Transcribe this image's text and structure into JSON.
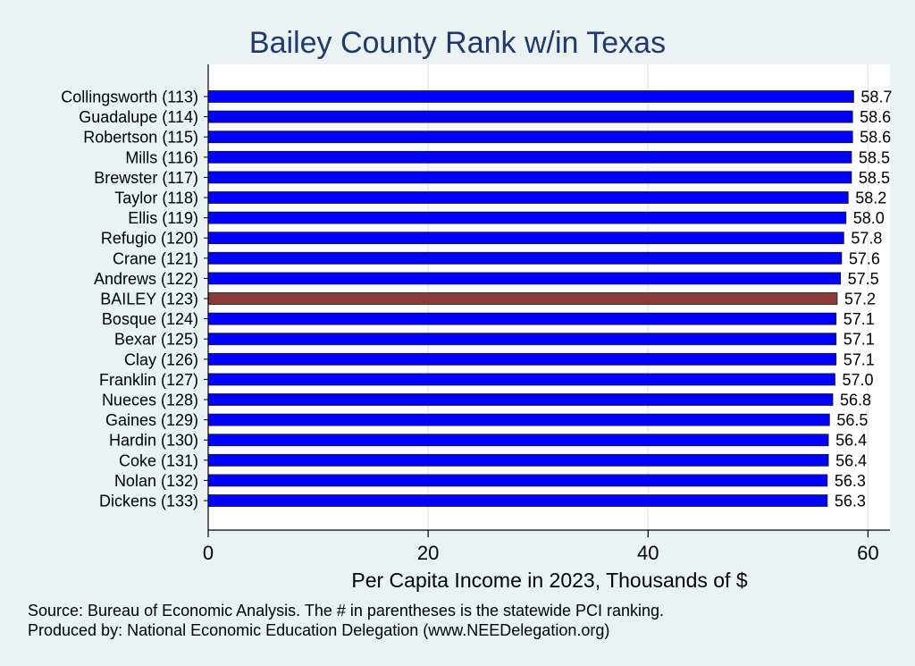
{
  "chart_data": {
    "type": "bar",
    "orientation": "horizontal",
    "title": "Bailey County Rank w/in Texas",
    "xlabel": "Per Capita Income in 2023, Thousands of $",
    "ylabel": "",
    "xlim": [
      0,
      62
    ],
    "xticks": [
      "0",
      "20",
      "40",
      "60"
    ],
    "grid": true,
    "categories": [
      "Collingsworth (113)",
      "Guadalupe (114)",
      "Robertson (115)",
      "Mills (116)",
      "Brewster (117)",
      "Taylor (118)",
      "Ellis (119)",
      "Refugio (120)",
      "Crane (121)",
      "Andrews (122)",
      "BAILEY (123)",
      "Bosque (124)",
      "Bexar (125)",
      "Clay (126)",
      "Franklin (127)",
      "Nueces (128)",
      "Gaines (129)",
      "Hardin (130)",
      "Coke (131)",
      "Nolan (132)",
      "Dickens (133)"
    ],
    "values": [
      58.7,
      58.6,
      58.6,
      58.5,
      58.5,
      58.2,
      58.0,
      57.8,
      57.6,
      57.5,
      57.2,
      57.1,
      57.1,
      57.1,
      57.0,
      56.8,
      56.5,
      56.4,
      56.4,
      56.3,
      56.3
    ],
    "value_labels": [
      "58.7",
      "58.6",
      "58.6",
      "58.5",
      "58.5",
      "58.2",
      "58.0",
      "57.8",
      "57.6",
      "57.5",
      "57.2",
      "57.1",
      "57.1",
      "57.1",
      "57.0",
      "56.8",
      "56.5",
      "56.4",
      "56.4",
      "56.3",
      "56.3"
    ],
    "highlight_index": 10,
    "colors": {
      "bar": "#0000ff",
      "highlight": "#8b3a3a",
      "title": "#1f3b6e",
      "background": "#eaf2f3",
      "plot_background": "#ffffff"
    }
  },
  "notes": {
    "source": "Source: Bureau of Economic Analysis. The # in parentheses is the statewide PCI ranking.",
    "produced_by": "Produced by: National Economic Education Delegation (www.NEEDelegation.org)"
  }
}
